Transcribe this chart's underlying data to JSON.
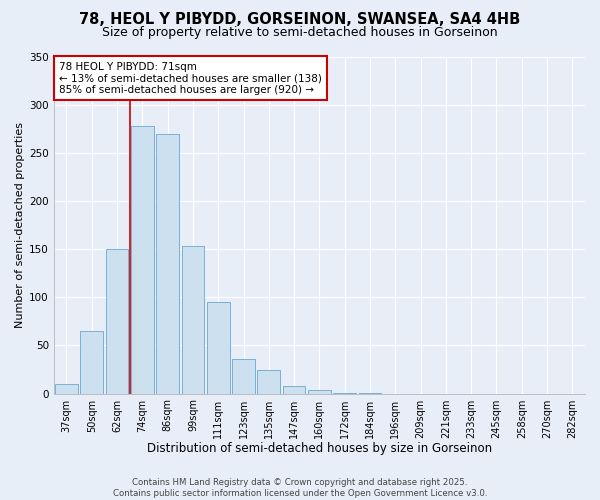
{
  "title": "78, HEOL Y PIBYDD, GORSEINON, SWANSEA, SA4 4HB",
  "subtitle": "Size of property relative to semi-detached houses in Gorseinon",
  "xlabel": "Distribution of semi-detached houses by size in Gorseinon",
  "ylabel": "Number of semi-detached properties",
  "bar_labels": [
    "37sqm",
    "50sqm",
    "62sqm",
    "74sqm",
    "86sqm",
    "99sqm",
    "111sqm",
    "123sqm",
    "135sqm",
    "147sqm",
    "160sqm",
    "172sqm",
    "184sqm",
    "196sqm",
    "209sqm",
    "221sqm",
    "233sqm",
    "245sqm",
    "258sqm",
    "270sqm",
    "282sqm"
  ],
  "bar_values": [
    10,
    65,
    150,
    278,
    270,
    153,
    95,
    36,
    25,
    8,
    4,
    1,
    1,
    0,
    0,
    0,
    0,
    0,
    0,
    0,
    0
  ],
  "bar_color": "#cce0f0",
  "bar_edge_color": "#7ab0d4",
  "vline_x_index": 3,
  "vline_color": "#cc0000",
  "annotation_title": "78 HEOL Y PIBYDD: 71sqm",
  "annotation_line1": "← 13% of semi-detached houses are smaller (138)",
  "annotation_line2": "85% of semi-detached houses are larger (920) →",
  "annotation_box_color": "white",
  "annotation_box_edge": "#cc0000",
  "ylim": [
    0,
    350
  ],
  "yticks": [
    0,
    50,
    100,
    150,
    200,
    250,
    300,
    350
  ],
  "bg_color": "#e8eef8",
  "grid_color": "#ffffff",
  "footer1": "Contains HM Land Registry data © Crown copyright and database right 2025.",
  "footer2": "Contains public sector information licensed under the Open Government Licence v3.0.",
  "title_fontsize": 10.5,
  "subtitle_fontsize": 9,
  "xlabel_fontsize": 8.5,
  "ylabel_fontsize": 8,
  "tick_fontsize": 7,
  "footer_fontsize": 6.2,
  "annot_fontsize": 7.5
}
